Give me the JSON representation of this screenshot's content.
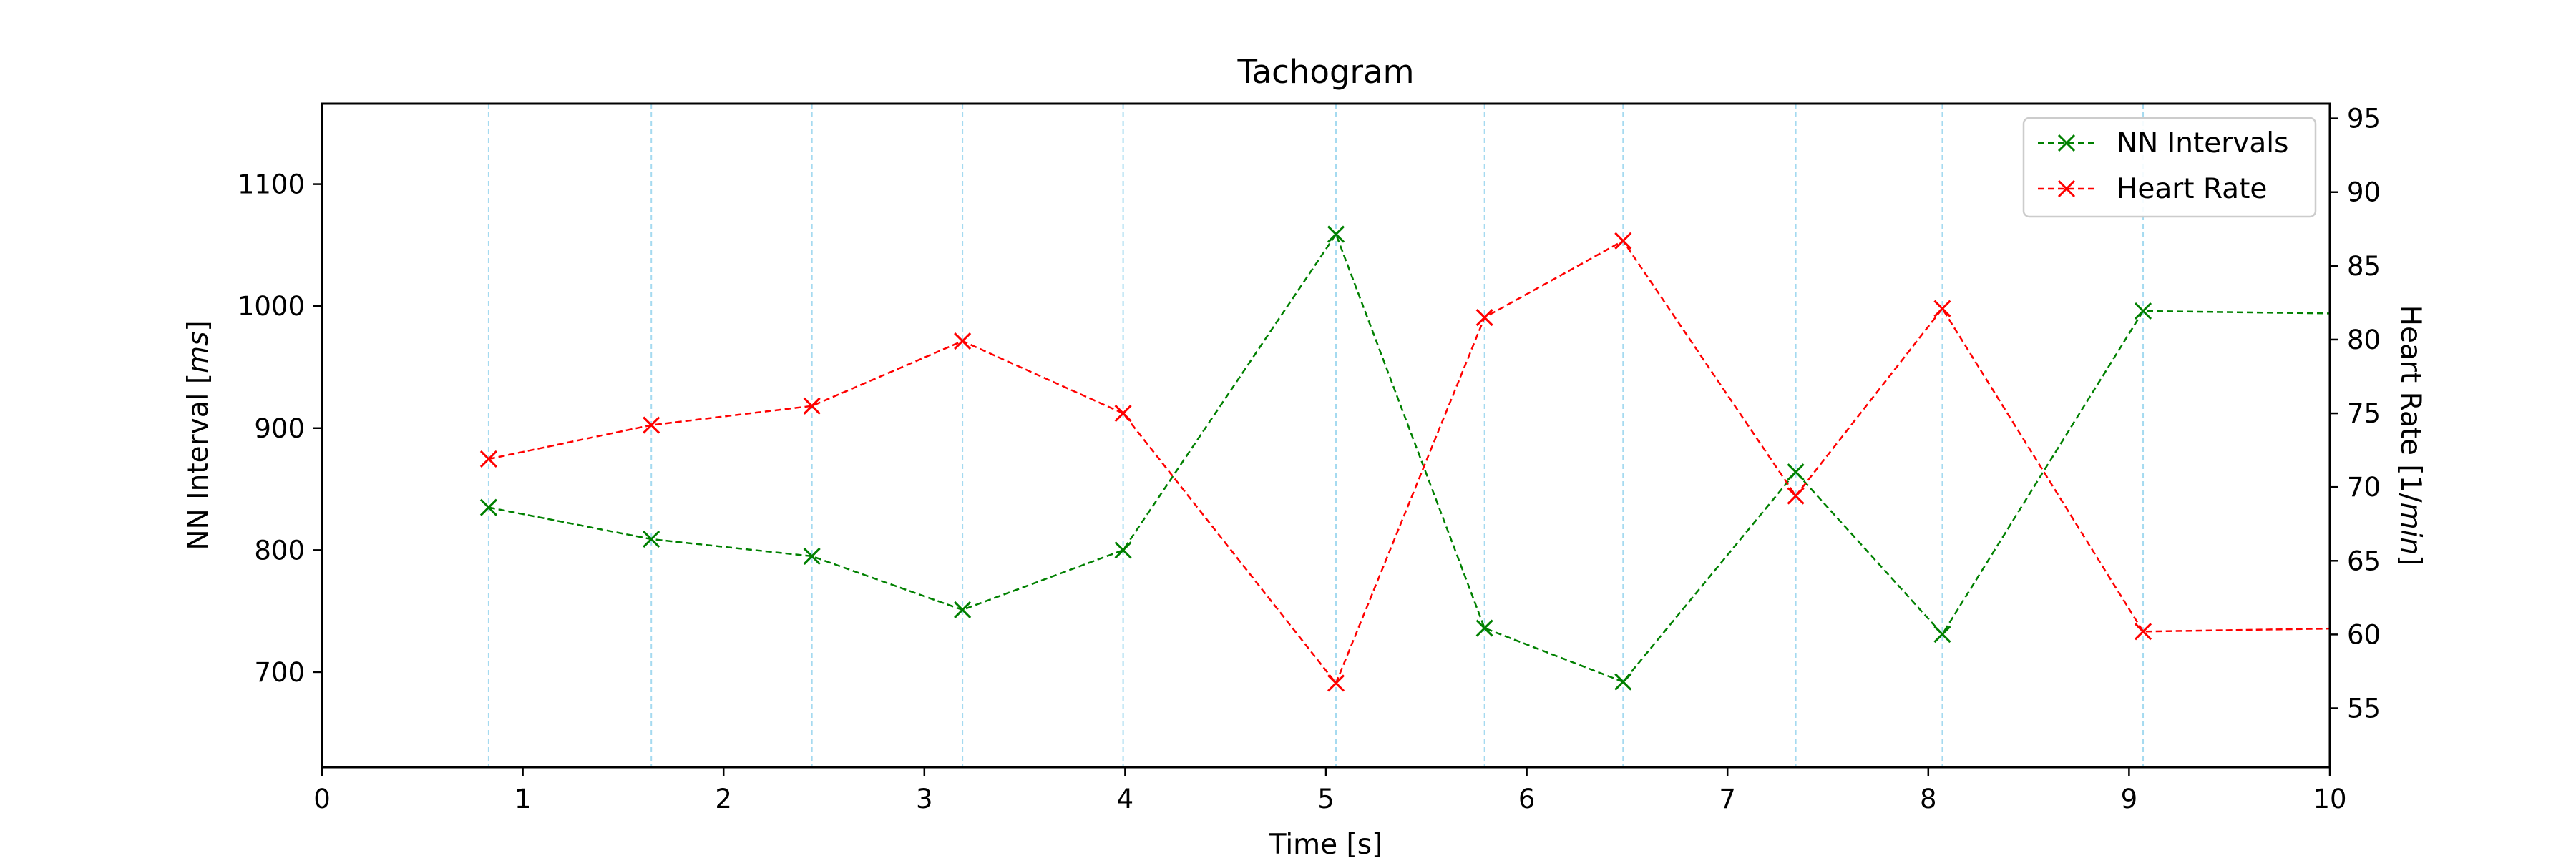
{
  "chart_data": {
    "type": "line",
    "title": "Tachogram",
    "xlabel": "Time [s]",
    "ylabel_left_prefix": "NN Interval [",
    "ylabel_left_unit": "ms",
    "ylabel_left_suffix": "]",
    "ylabel_right_prefix": "Heart Rate [1/",
    "ylabel_right_unit": "min",
    "ylabel_right_suffix": "]",
    "xlim": [
      0,
      10
    ],
    "ylim_left": [
      622,
      1166
    ],
    "ylim_right": [
      51,
      96
    ],
    "x_ticks": [
      0,
      1,
      2,
      3,
      4,
      5,
      6,
      7,
      8,
      9,
      10
    ],
    "y_left_ticks": [
      700,
      800,
      900,
      1000,
      1100
    ],
    "y_right_ticks": [
      55,
      60,
      65,
      70,
      75,
      80,
      85,
      90,
      95
    ],
    "vlines": [
      0.83,
      1.64,
      2.44,
      3.19,
      3.99,
      5.05,
      5.79,
      6.48,
      7.34,
      8.07,
      9.07
    ],
    "legend_position": "top-right",
    "series": [
      {
        "name": "NN Intervals",
        "axis": "left",
        "color": "#008000",
        "marker": "x",
        "linestyle": "dashed",
        "x": [
          0.83,
          1.64,
          2.44,
          3.19,
          3.99,
          5.05,
          5.79,
          6.48,
          7.34,
          8.07,
          9.07
        ],
        "y": [
          835,
          809,
          795,
          751,
          800,
          1059,
          736,
          692,
          864,
          731,
          996
        ],
        "tail": {
          "x": 10,
          "y": 994
        }
      },
      {
        "name": "Heart Rate",
        "axis": "right",
        "color": "#ff0000",
        "marker": "x",
        "linestyle": "dashed",
        "x": [
          0.83,
          1.64,
          2.44,
          3.19,
          3.99,
          5.05,
          5.79,
          6.48,
          7.34,
          8.07,
          9.07
        ],
        "y": [
          71.9,
          74.2,
          75.5,
          79.9,
          75.0,
          56.7,
          81.5,
          86.7,
          69.4,
          82.1,
          60.2
        ],
        "tail": {
          "x": 10,
          "y": 60.4
        }
      }
    ]
  }
}
